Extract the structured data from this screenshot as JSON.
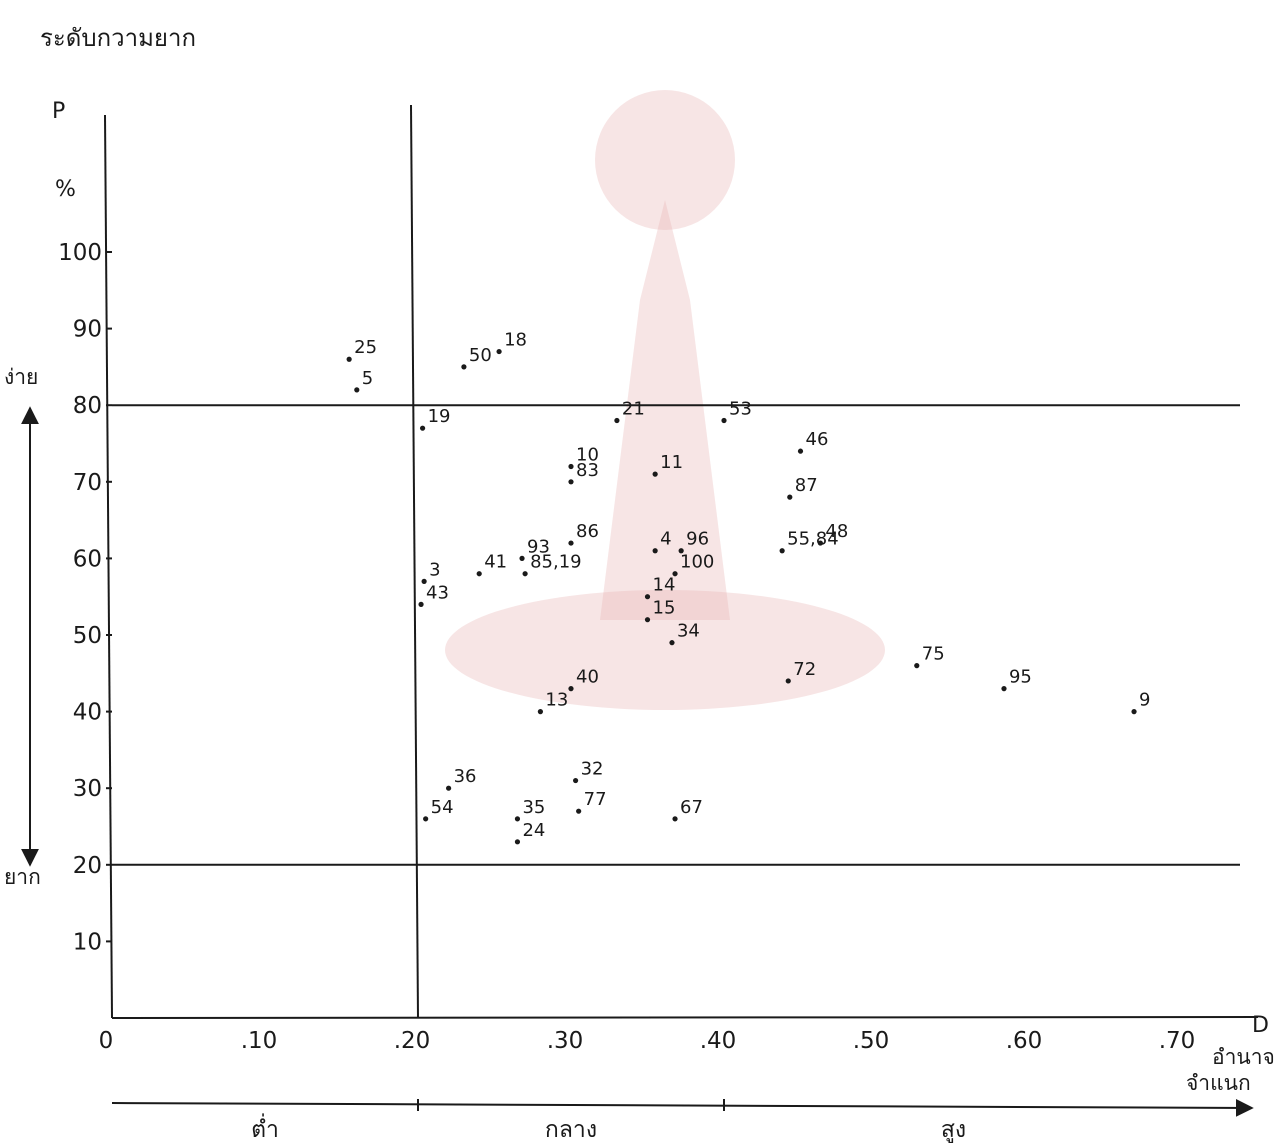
{
  "page_title": "ระดับกวามยาก",
  "colors": {
    "ink": "#1a1a1a",
    "watermark": "#e8b4b4"
  },
  "chart_data": {
    "type": "scatter",
    "title": "ระดับกวามยาก",
    "ylabel": "P",
    "ylabel_unit": "%",
    "xlabel": "D",
    "xlabel_text": [
      "อำนาจ",
      "จำแนก"
    ],
    "xlim": [
      0,
      0.74
    ],
    "ylim": [
      0,
      110
    ],
    "x_ticks": [
      {
        "value": 0,
        "label": "0"
      },
      {
        "value": 0.1,
        "label": ".10"
      },
      {
        "value": 0.2,
        "label": ".20"
      },
      {
        "value": 0.3,
        "label": ".30"
      },
      {
        "value": 0.4,
        "label": ".40"
      },
      {
        "value": 0.5,
        "label": ".50"
      },
      {
        "value": 0.6,
        "label": ".60"
      },
      {
        "value": 0.7,
        "label": ".70"
      }
    ],
    "y_ticks": [
      {
        "value": 10,
        "label": "10"
      },
      {
        "value": 20,
        "label": "20"
      },
      {
        "value": 30,
        "label": "30"
      },
      {
        "value": 40,
        "label": "40"
      },
      {
        "value": 50,
        "label": "50"
      },
      {
        "value": 60,
        "label": "60"
      },
      {
        "value": 70,
        "label": "70"
      },
      {
        "value": 80,
        "label": "80"
      },
      {
        "value": 90,
        "label": "90"
      },
      {
        "value": 100,
        "label": "100"
      }
    ],
    "reference_lines": {
      "horizontal": [
        80,
        20
      ],
      "vertical": [
        0.2
      ]
    },
    "difficulty_range": {
      "top_label": "ง่าย",
      "bottom_label": "ยาก"
    },
    "discrimination_range": {
      "labels": [
        {
          "label": "ต่ำ",
          "x": 0.1
        },
        {
          "label": "กลาง",
          "x": 0.3
        },
        {
          "label": "สูง",
          "x": 0.55
        }
      ],
      "boundaries": [
        0.2,
        0.4
      ]
    },
    "points": [
      {
        "label": "25",
        "x": 0.155,
        "y": 86
      },
      {
        "label": "5",
        "x": 0.16,
        "y": 82
      },
      {
        "label": "50",
        "x": 0.23,
        "y": 85
      },
      {
        "label": "18",
        "x": 0.253,
        "y": 87
      },
      {
        "label": "19",
        "x": 0.203,
        "y": 77
      },
      {
        "label": "21",
        "x": 0.33,
        "y": 78
      },
      {
        "label": "53",
        "x": 0.4,
        "y": 78
      },
      {
        "label": "10",
        "x": 0.3,
        "y": 72
      },
      {
        "label": "83",
        "x": 0.3,
        "y": 70
      },
      {
        "label": "11",
        "x": 0.355,
        "y": 71
      },
      {
        "label": "46",
        "x": 0.45,
        "y": 74
      },
      {
        "label": "87",
        "x": 0.443,
        "y": 68
      },
      {
        "label": "41",
        "x": 0.24,
        "y": 58
      },
      {
        "label": "93",
        "x": 0.268,
        "y": 60
      },
      {
        "label": "86",
        "x": 0.3,
        "y": 62
      },
      {
        "label": "85,19",
        "x": 0.27,
        "y": 58
      },
      {
        "label": "4",
        "x": 0.355,
        "y": 61
      },
      {
        "label": "96",
        "x": 0.372,
        "y": 61
      },
      {
        "label": "100",
        "x": 0.368,
        "y": 58
      },
      {
        "label": "55,84",
        "x": 0.438,
        "y": 61
      },
      {
        "label": "48",
        "x": 0.463,
        "y": 62
      },
      {
        "label": "3",
        "x": 0.204,
        "y": 57
      },
      {
        "label": "43",
        "x": 0.202,
        "y": 54
      },
      {
        "label": "14",
        "x": 0.35,
        "y": 55
      },
      {
        "label": "15",
        "x": 0.35,
        "y": 52
      },
      {
        "label": "34",
        "x": 0.366,
        "y": 49
      },
      {
        "label": "75",
        "x": 0.526,
        "y": 46
      },
      {
        "label": "72",
        "x": 0.442,
        "y": 44
      },
      {
        "label": "95",
        "x": 0.583,
        "y": 43
      },
      {
        "label": "9",
        "x": 0.668,
        "y": 40
      },
      {
        "label": "40",
        "x": 0.3,
        "y": 43
      },
      {
        "label": "13",
        "x": 0.28,
        "y": 40
      },
      {
        "label": "36",
        "x": 0.22,
        "y": 30
      },
      {
        "label": "54",
        "x": 0.205,
        "y": 26
      },
      {
        "label": "32",
        "x": 0.303,
        "y": 31
      },
      {
        "label": "35",
        "x": 0.265,
        "y": 26
      },
      {
        "label": "77",
        "x": 0.305,
        "y": 27
      },
      {
        "label": "24",
        "x": 0.265,
        "y": 23
      },
      {
        "label": "67",
        "x": 0.368,
        "y": 26
      }
    ]
  }
}
